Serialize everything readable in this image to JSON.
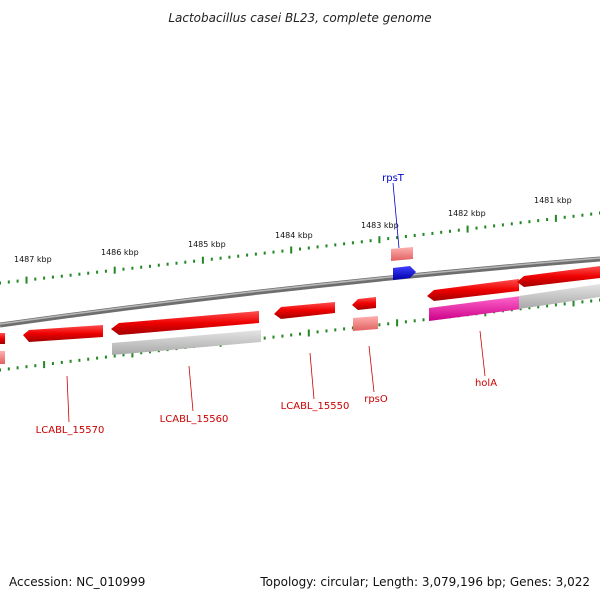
{
  "title": "Lactobacillus casei BL23, complete genome",
  "footer": {
    "accession": "Accession: NC_010999",
    "summary": "Topology: circular; Length: 3,079,196 bp; Genes: 3,022"
  },
  "tick_labels": [
    "1487 kbp",
    "1486 kbp",
    "1485 kbp",
    "1484 kbp",
    "1483 kbp",
    "1482 kbp",
    "1481 kbp"
  ],
  "gene_labels": [
    {
      "name": "rpsT",
      "color": "#0000cc"
    },
    {
      "name": "LCABL_15570",
      "color": "#cc0000"
    },
    {
      "name": "LCABL_15560",
      "color": "#cc0000"
    },
    {
      "name": "LCABL_15550",
      "color": "#cc0000"
    },
    {
      "name": "rpsO",
      "color": "#cc0000"
    },
    {
      "name": "holA",
      "color": "#cc0000"
    }
  ],
  "colors": {
    "cds": "#ee0000",
    "rna": "#f08080",
    "trna": "#0000ee",
    "pseudo": "#ee1199",
    "backbone": "#8a8a8a",
    "tick": "#228822"
  }
}
